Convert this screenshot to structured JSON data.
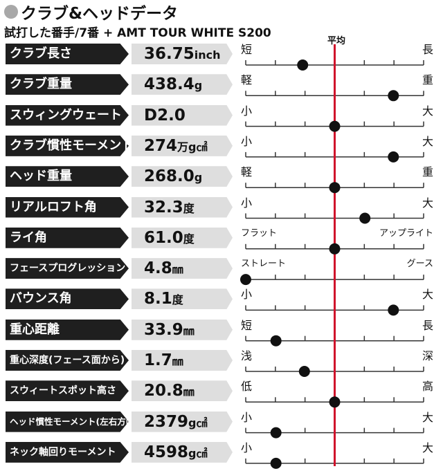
{
  "header": {
    "title": "クラブ&ヘッドデータ",
    "subtitle": "試打した番手/7番 + AMT TOUR WHITE S200",
    "avg_label": "平均"
  },
  "colors": {
    "avg_line": "#d0112b",
    "dot": "#111111",
    "name_bg": "#1f1f1f",
    "value_bg": "#dedede"
  },
  "chart_data": {
    "type": "scatter",
    "title": "クラブ&ヘッドデータ",
    "subtitle": "試打した番手/7番 + AMT TOUR WHITE S200",
    "scale": {
      "min": 0,
      "max": 10,
      "average": 5
    },
    "rows": [
      {
        "name": "クラブ長さ",
        "value": "36.75",
        "unit": "inch",
        "low": "短",
        "high": "長",
        "position": 3.2
      },
      {
        "name": "クラブ重量",
        "value": "438.4",
        "unit": "g",
        "low": "軽",
        "high": "重",
        "position": 8.3
      },
      {
        "name": "スウィングウェート",
        "value": "D2.0",
        "unit": "",
        "low": "小",
        "high": "大",
        "position": 5
      },
      {
        "name": "クラブ慣性モーメント",
        "value": "274",
        "unit": "万g㎠",
        "low": "小",
        "high": "大",
        "position": 8.3
      },
      {
        "name": "ヘッド重量",
        "value": "268.0",
        "unit": "g",
        "low": "軽",
        "high": "重",
        "position": 5
      },
      {
        "name": "リアルロフト角",
        "value": "32.3",
        "unit": "度",
        "low": "小",
        "high": "大",
        "position": 6.7
      },
      {
        "name": "ライ角",
        "value": "61.0",
        "unit": "度",
        "low": "フラット",
        "high": "アップライト",
        "position": 5
      },
      {
        "name": "フェースプログレッション",
        "value": "4.8",
        "unit": "㎜",
        "low": "ストレート",
        "high": "グース",
        "position": 0
      },
      {
        "name": "バウンス角",
        "value": "8.1",
        "unit": "度",
        "low": "小",
        "high": "大",
        "position": 8.3
      },
      {
        "name": "重心距離",
        "value": "33.9",
        "unit": "㎜",
        "low": "短",
        "high": "長",
        "position": 1.7
      },
      {
        "name": "重心深度(フェース面から)",
        "value": "1.7",
        "unit": "㎜",
        "low": "浅",
        "high": "深",
        "position": 3.3
      },
      {
        "name": "スウィートスポット高さ",
        "value": "20.8",
        "unit": "㎜",
        "low": "低",
        "high": "高",
        "position": 5
      },
      {
        "name": "ヘッド慣性モーメント(左右方向)",
        "value": "2379",
        "unit": "g㎠",
        "low": "小",
        "high": "大",
        "position": 1.7
      },
      {
        "name": "ネック軸回りモーメント",
        "value": "4598",
        "unit": "g㎠",
        "low": "小",
        "high": "大",
        "position": 1.7
      }
    ]
  }
}
